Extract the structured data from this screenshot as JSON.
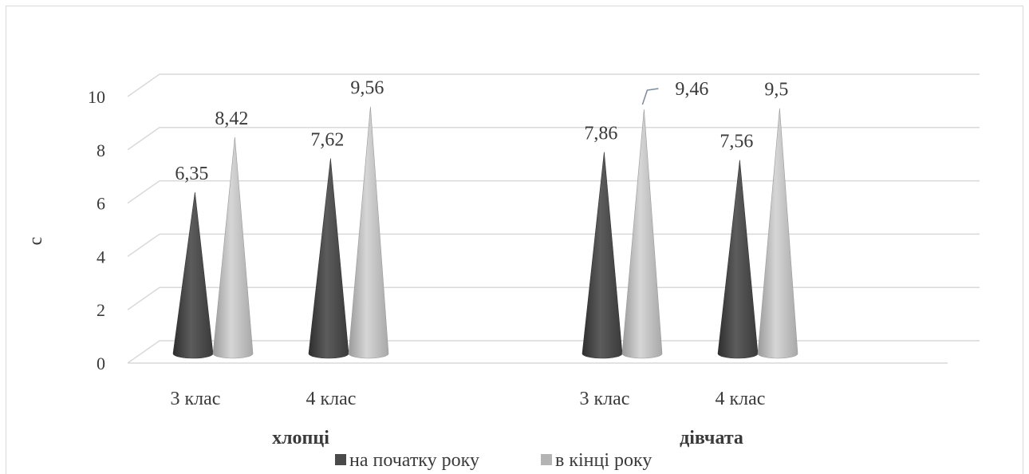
{
  "chart_data": {
    "type": "bar",
    "style": "3d-cone",
    "groups": [
      {
        "label": "хлопці",
        "categories": [
          "3 клас",
          "4 клас"
        ]
      },
      {
        "label": "дівчата",
        "categories": [
          "3  клас",
          "4  клас"
        ]
      }
    ],
    "series": [
      {
        "name": "на початку року",
        "color": "#4a4a4a",
        "values": [
          6.35,
          7.62,
          7.86,
          7.56
        ],
        "labels": [
          "6,35",
          "7,62",
          "7,86",
          "7,56"
        ]
      },
      {
        "name": "в кінці року",
        "color": "#b4b4b4",
        "values": [
          8.42,
          9.56,
          9.46,
          9.5
        ],
        "labels": [
          "8,42",
          "9,56",
          "9,46",
          "9,5"
        ]
      }
    ],
    "ylabel": "с",
    "ylim": [
      0,
      10
    ],
    "yticks": [
      0,
      2,
      4,
      6,
      8,
      10
    ],
    "grid": true,
    "legend_position": "bottom"
  }
}
